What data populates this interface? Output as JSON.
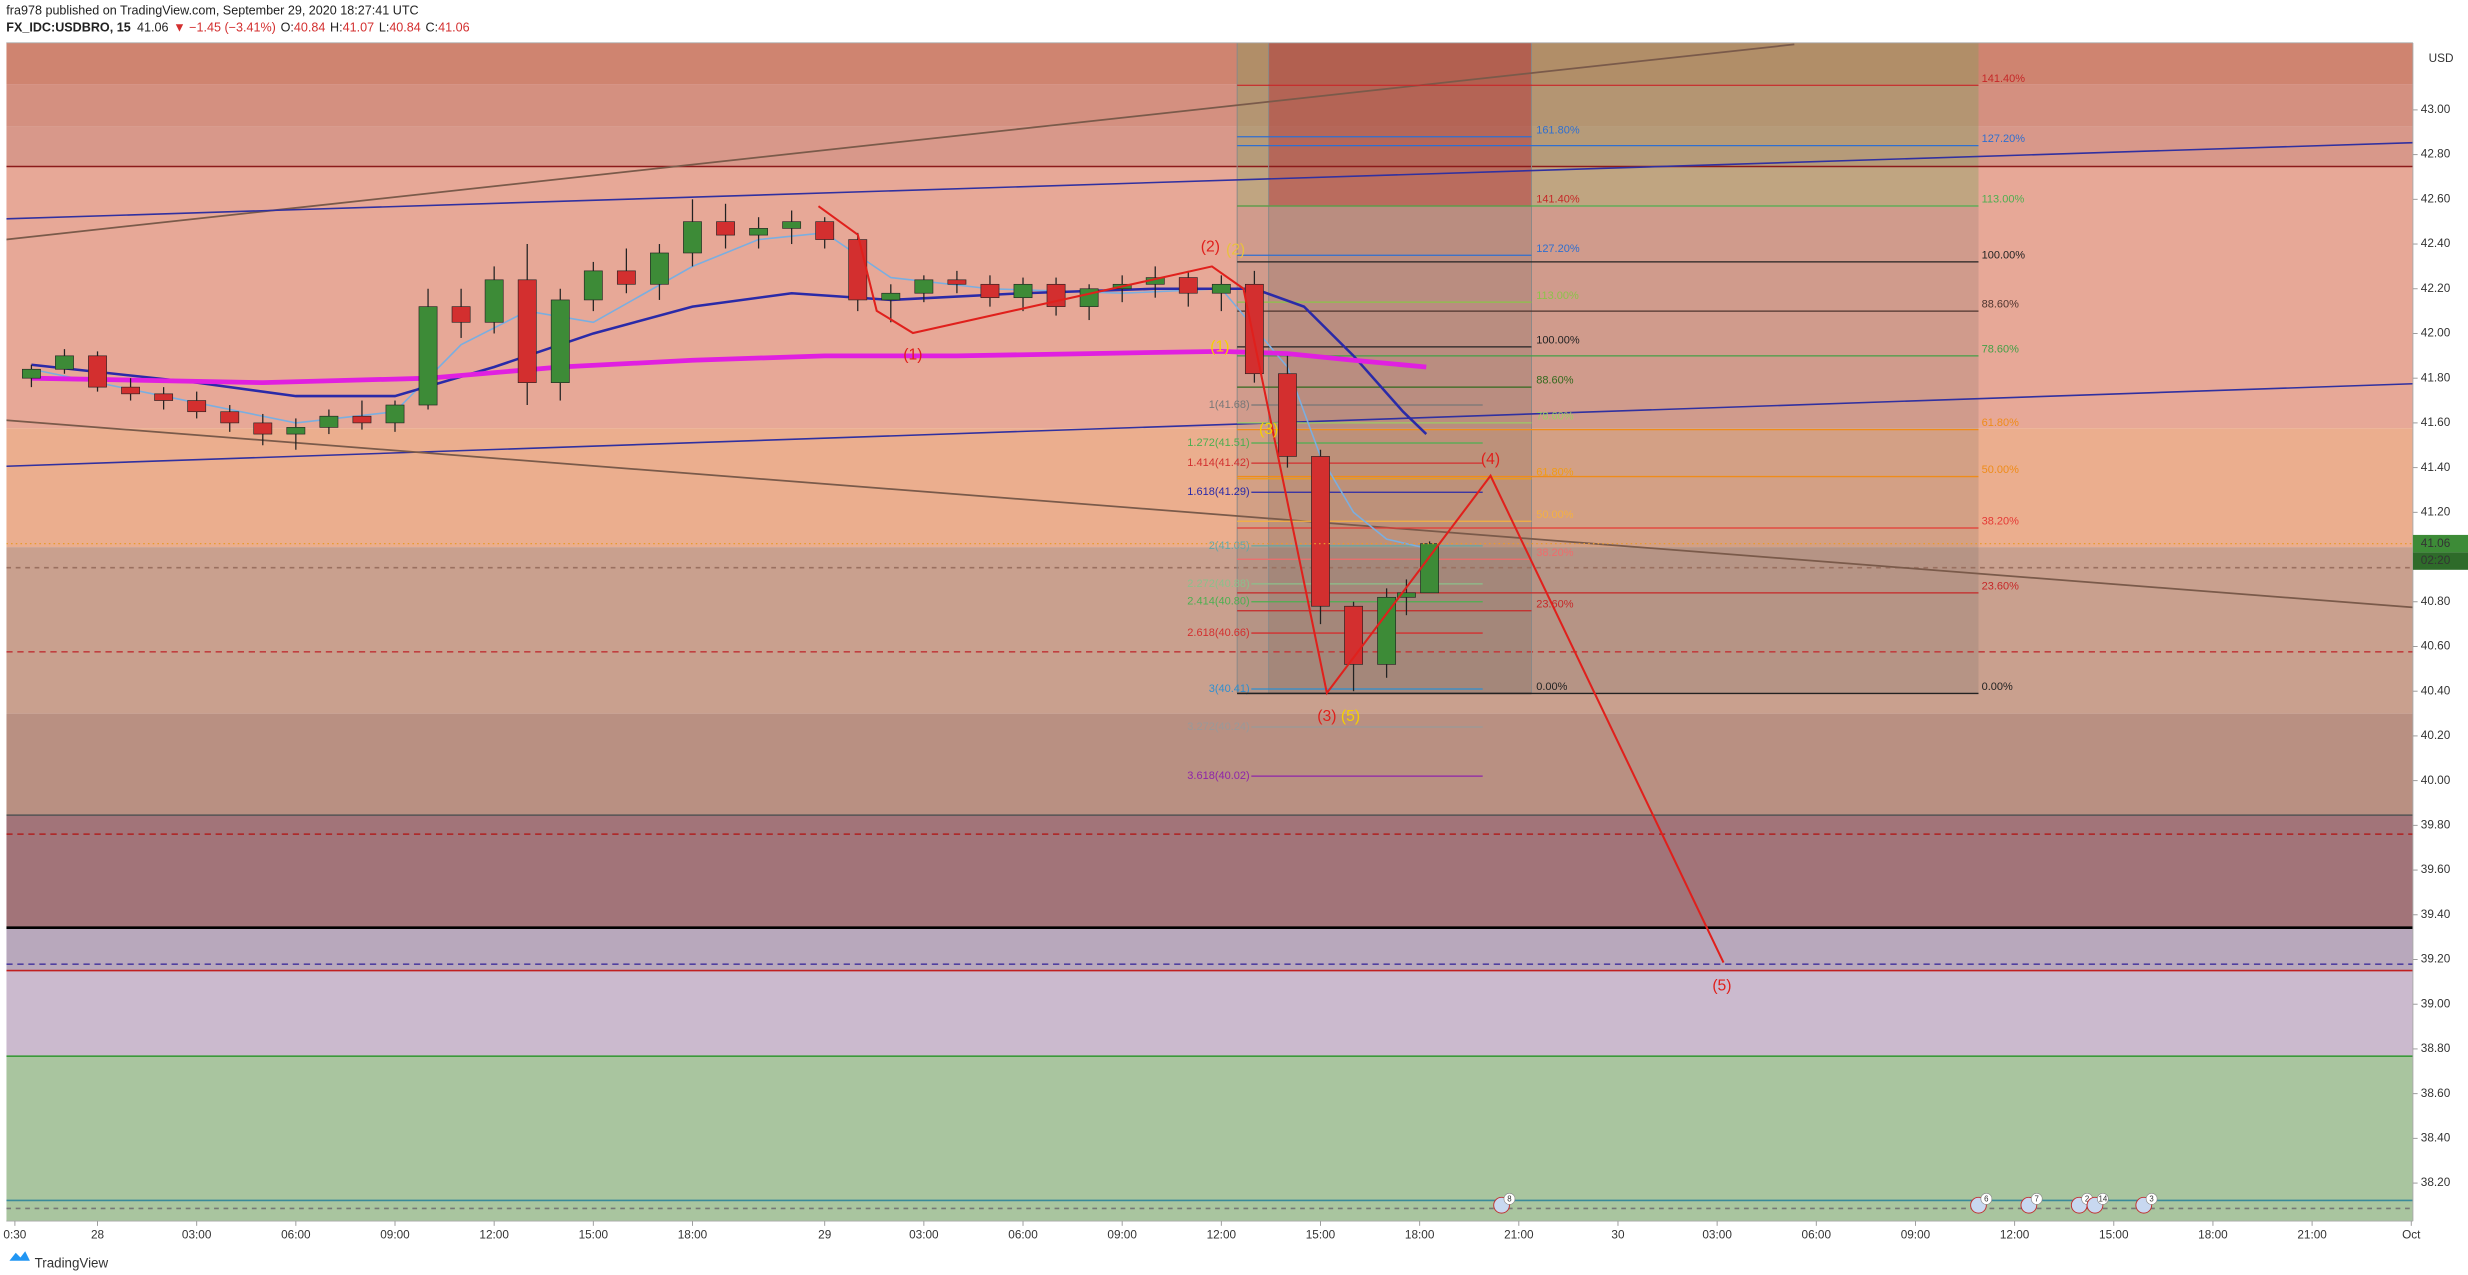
{
  "header": {
    "line1": "fra978 published on TradingView.com, September 29, 2020 18:27:41 UTC",
    "symbol": "FX_IDC:USDBRO, 15",
    "last": 41.06,
    "change": "▼ −1.45 (−3.41%)",
    "ohlc": [
      {
        "label": "O:",
        "value": 40.84
      },
      {
        "label": "H:",
        "value": 41.07
      },
      {
        "label": "L:",
        "value": 40.84
      },
      {
        "label": "C:",
        "value": 41.06
      }
    ]
  },
  "footer": {
    "brand": "TradingView"
  },
  "chart_data": {
    "type": "candlestick",
    "currency": "USD",
    "up_color": "#3d8b37",
    "down_color": "#d32f2f",
    "x": [
      -2,
      -1,
      0,
      1,
      2,
      3,
      4,
      5,
      6,
      7,
      8,
      9,
      10,
      11,
      12,
      13,
      14,
      15,
      16,
      17,
      18,
      19,
      20,
      21,
      22,
      23,
      24,
      25,
      26,
      27,
      28,
      29,
      30,
      31,
      32,
      33,
      34,
      35,
      36,
      37,
      38,
      39,
      39.6,
      40.3
    ],
    "open": [
      41.8,
      41.84,
      41.9,
      41.76,
      41.73,
      41.7,
      41.65,
      41.6,
      41.55,
      41.58,
      41.63,
      41.6,
      41.68,
      42.12,
      42.05,
      42.24,
      41.78,
      42.15,
      42.28,
      42.22,
      42.36,
      42.5,
      42.44,
      42.47,
      42.5,
      42.42,
      42.15,
      42.18,
      42.24,
      42.22,
      42.16,
      42.22,
      42.12,
      42.2,
      42.22,
      42.25,
      42.18,
      42.22,
      41.82,
      41.45,
      40.78,
      40.52,
      40.82,
      40.84
    ],
    "high": [
      41.86,
      41.93,
      41.92,
      41.8,
      41.76,
      41.74,
      41.68,
      41.64,
      41.62,
      41.66,
      41.7,
      41.7,
      42.2,
      42.2,
      42.3,
      42.4,
      42.2,
      42.32,
      42.38,
      42.4,
      42.6,
      42.58,
      42.52,
      42.55,
      42.52,
      42.45,
      42.22,
      42.26,
      42.28,
      42.26,
      42.25,
      42.25,
      42.22,
      42.26,
      42.3,
      42.28,
      42.26,
      42.28,
      41.9,
      41.48,
      40.8,
      40.86,
      40.9,
      41.07
    ],
    "low": [
      41.76,
      41.82,
      41.74,
      41.7,
      41.66,
      41.62,
      41.56,
      41.5,
      41.48,
      41.55,
      41.57,
      41.56,
      41.66,
      41.98,
      42.0,
      41.68,
      41.7,
      42.1,
      42.18,
      42.15,
      42.3,
      42.38,
      42.38,
      42.4,
      42.38,
      42.1,
      42.05,
      42.14,
      42.18,
      42.12,
      42.1,
      42.08,
      42.06,
      42.14,
      42.16,
      42.12,
      42.1,
      41.78,
      41.4,
      40.7,
      40.4,
      40.46,
      40.74,
      40.84
    ],
    "close": [
      41.84,
      41.9,
      41.76,
      41.73,
      41.7,
      41.65,
      41.6,
      41.55,
      41.58,
      41.63,
      41.6,
      41.68,
      42.12,
      42.05,
      42.24,
      41.78,
      42.15,
      42.28,
      42.22,
      42.36,
      42.5,
      42.44,
      42.47,
      42.5,
      42.42,
      42.15,
      42.18,
      42.24,
      42.22,
      42.16,
      42.22,
      42.12,
      42.2,
      42.22,
      42.25,
      42.18,
      42.22,
      41.82,
      41.45,
      40.78,
      40.52,
      40.82,
      40.84,
      41.06
    ],
    "series": [
      {
        "color": "#7aaee0",
        "width": 1,
        "x": [
          -2,
          2,
          6,
          9,
          11,
          13,
          15,
          18,
          20,
          22,
          24,
          27,
          31,
          34,
          36,
          37,
          38,
          39,
          40.2
        ],
        "values": [
          41.84,
          41.72,
          41.6,
          41.65,
          41.95,
          42.1,
          42.05,
          42.3,
          42.42,
          42.45,
          42.25,
          42.2,
          42.18,
          42.2,
          41.85,
          41.45,
          41.2,
          41.08,
          41.04
        ]
      },
      {
        "color": "#2a2aa8",
        "width": 1.6,
        "x": [
          -2,
          3,
          6,
          9,
          12,
          15,
          18,
          21,
          24,
          28,
          32,
          35,
          36.5,
          38,
          39.5,
          40.2
        ],
        "values": [
          41.86,
          41.78,
          41.72,
          41.72,
          41.85,
          42.0,
          42.12,
          42.18,
          42.15,
          42.18,
          42.2,
          42.2,
          42.12,
          41.9,
          41.65,
          41.55
        ]
      },
      {
        "color": "#e020e0",
        "width": 3,
        "x": [
          -2,
          5,
          10,
          14,
          18,
          22,
          26,
          30,
          34,
          36,
          38,
          40.2
        ],
        "values": [
          41.8,
          41.78,
          41.8,
          41.85,
          41.88,
          41.9,
          41.9,
          41.91,
          41.92,
          41.91,
          41.88,
          41.85
        ]
      }
    ],
    "last_price": 41.06,
    "countdown": "02:20",
    "xlim": [
      -2.76,
      70.05
    ],
    "ylim": [
      38.03,
      43.3
    ],
    "xticks": [
      {
        "value": -2.5,
        "label": "0:30"
      },
      {
        "value": 0,
        "label": "28"
      },
      {
        "value": 3,
        "label": "03:00"
      },
      {
        "value": 6,
        "label": "06:00"
      },
      {
        "value": 9,
        "label": "09:00"
      },
      {
        "value": 12,
        "label": "12:00"
      },
      {
        "value": 15,
        "label": "15:00"
      },
      {
        "value": 18,
        "label": "18:00"
      },
      {
        "value": 22,
        "label": "29"
      },
      {
        "value": 25,
        "label": "03:00"
      },
      {
        "value": 28,
        "label": "06:00"
      },
      {
        "value": 31,
        "label": "09:00"
      },
      {
        "value": 34,
        "label": "12:00"
      },
      {
        "value": 37,
        "label": "15:00"
      },
      {
        "value": 40,
        "label": "18:00"
      },
      {
        "value": 43,
        "label": "21:00"
      },
      {
        "value": 46,
        "label": "30"
      },
      {
        "value": 49,
        "label": "03:00"
      },
      {
        "value": 52,
        "label": "06:00"
      },
      {
        "value": 55,
        "label": "09:00"
      },
      {
        "value": 58,
        "label": "12:00"
      },
      {
        "value": 61,
        "label": "15:00"
      },
      {
        "value": 64,
        "label": "18:00"
      },
      {
        "value": 67,
        "label": "21:00"
      },
      {
        "value": 70,
        "label": "Oct"
      }
    ],
    "yticks": [
      {
        "value": 38.2,
        "label": "38.20"
      },
      {
        "value": 38.4,
        "label": "38.40"
      },
      {
        "value": 38.6,
        "label": "38.60"
      },
      {
        "value": 38.8,
        "label": "38.80"
      },
      {
        "value": 39,
        "label": "39.00"
      },
      {
        "value": 39.2,
        "label": "39.20"
      },
      {
        "value": 39.4,
        "label": "39.40"
      },
      {
        "value": 39.6,
        "label": "39.60"
      },
      {
        "value": 39.8,
        "label": "39.80"
      },
      {
        "value": 40,
        "label": "40.00"
      },
      {
        "value": 40.2,
        "label": "40.20"
      },
      {
        "value": 40.4,
        "label": "40.40"
      },
      {
        "value": 40.6,
        "label": "40.60"
      },
      {
        "value": 40.8,
        "label": "40.80"
      },
      {
        "value": 41.2,
        "label": "41.20"
      },
      {
        "value": 41.4,
        "label": "41.40"
      },
      {
        "value": 41.6,
        "label": "41.60"
      },
      {
        "value": 41.8,
        "label": "41.80"
      },
      {
        "value": 42,
        "label": "42.00"
      },
      {
        "value": 42.2,
        "label": "42.20"
      },
      {
        "value": 42.4,
        "label": "42.40"
      },
      {
        "value": 42.6,
        "label": "42.60"
      },
      {
        "value": 42.8,
        "label": "42.80"
      },
      {
        "value": 43,
        "label": "43.00"
      }
    ],
    "fib_extension": [
      {
        "label": "1(41.68)",
        "price": 41.68,
        "color": "#777777"
      },
      {
        "label": "1.272(41.51)",
        "price": 41.51,
        "color": "#4caf50"
      },
      {
        "label": "1.414(41.42)",
        "price": 41.42,
        "color": "#d32f2f"
      },
      {
        "label": "1.618(41.29)",
        "price": 41.29,
        "color": "#2a2aa8"
      },
      {
        "label": "2(41.05)",
        "price": 41.05,
        "color": "#5fa8a8"
      },
      {
        "label": "2.272(40.88)",
        "price": 40.88,
        "color": "#8bc08b"
      },
      {
        "label": "2.414(40.80)",
        "price": 40.8,
        "color": "#4caf50"
      },
      {
        "label": "2.618(40.66)",
        "price": 40.66,
        "color": "#d32f2f"
      },
      {
        "label": "3(40.41)",
        "price": 40.41,
        "color": "#2f8fd0"
      },
      {
        "label": "3.272(40.24)",
        "price": 40.24,
        "color": "#999999"
      },
      {
        "label": "3.618(40.02)",
        "price": 40.02,
        "color": "#8e24aa"
      }
    ],
    "fib_retracement_inner": [
      {
        "label": "161.80%",
        "price": 42.88,
        "color": "#2f6fd0"
      },
      {
        "label": "141.40%",
        "price": 42.57,
        "color": "#c62828"
      },
      {
        "label": "127.20%",
        "price": 42.35,
        "color": "#2f6fd0"
      },
      {
        "label": "113.00%",
        "price": 42.14,
        "color": "#8bc34a"
      },
      {
        "label": "100.00%",
        "price": 41.94,
        "color": "#222222"
      },
      {
        "label": "88.60%",
        "price": 41.76,
        "color": "#33691e"
      },
      {
        "label": "78.60%",
        "price": 41.6,
        "color": "#9ccc65"
      },
      {
        "label": "61.80%",
        "price": 41.35,
        "color": "#f39c12"
      },
      {
        "label": "50.00%",
        "price": 41.16,
        "color": "#f5b041"
      },
      {
        "label": "38.20%",
        "price": 40.99,
        "color": "#ef6c6c"
      },
      {
        "label": "23.60%",
        "price": 40.76,
        "color": "#c62828"
      },
      {
        "label": "0.00%",
        "price": 40.39,
        "color": "#222222"
      }
    ],
    "fib_retracement_outer": [
      {
        "label": "141.40%",
        "price": 43.11,
        "color": "#c62828"
      },
      {
        "label": "127.20%",
        "price": 42.84,
        "color": "#2f6fd0"
      },
      {
        "label": "113.00%",
        "price": 42.57,
        "color": "#4caf50"
      },
      {
        "label": "100.00%",
        "price": 42.32,
        "color": "#222222"
      },
      {
        "label": "88.60%",
        "price": 42.1,
        "color": "#4e342e"
      },
      {
        "label": "78.60%",
        "price": 41.9,
        "color": "#43a047"
      },
      {
        "label": "61.80%",
        "price": 41.57,
        "color": "#ef8c1a"
      },
      {
        "label": "50.00%",
        "price": 41.36,
        "color": "#ef8c1a"
      },
      {
        "label": "38.20%",
        "price": 41.13,
        "color": "#e53935"
      },
      {
        "label": "23.60%",
        "price": 40.84,
        "color": "#c62828"
      },
      {
        "label": "0.00%",
        "price": 40.39,
        "color": "#222222"
      }
    ],
    "wave_labels": [
      {
        "label": "(1)",
        "color": "#e0201c"
      },
      {
        "label": "(2)",
        "color": "#e0201c"
      },
      {
        "label": "(3)",
        "color": "#e0201c"
      },
      {
        "label": "(5)",
        "color": "#f5d000"
      },
      {
        "label": "(4)",
        "color": "#e0201c"
      },
      {
        "label": "(5)",
        "color": "#e0201c"
      },
      {
        "label": "(1)",
        "color": "#f5d000"
      },
      {
        "label": "(3)",
        "color": "#f5d000"
      },
      {
        "label": "(2)",
        "color": "#e8c040"
      }
    ],
    "events": [
      8,
      6,
      7,
      2,
      14,
      3
    ]
  }
}
